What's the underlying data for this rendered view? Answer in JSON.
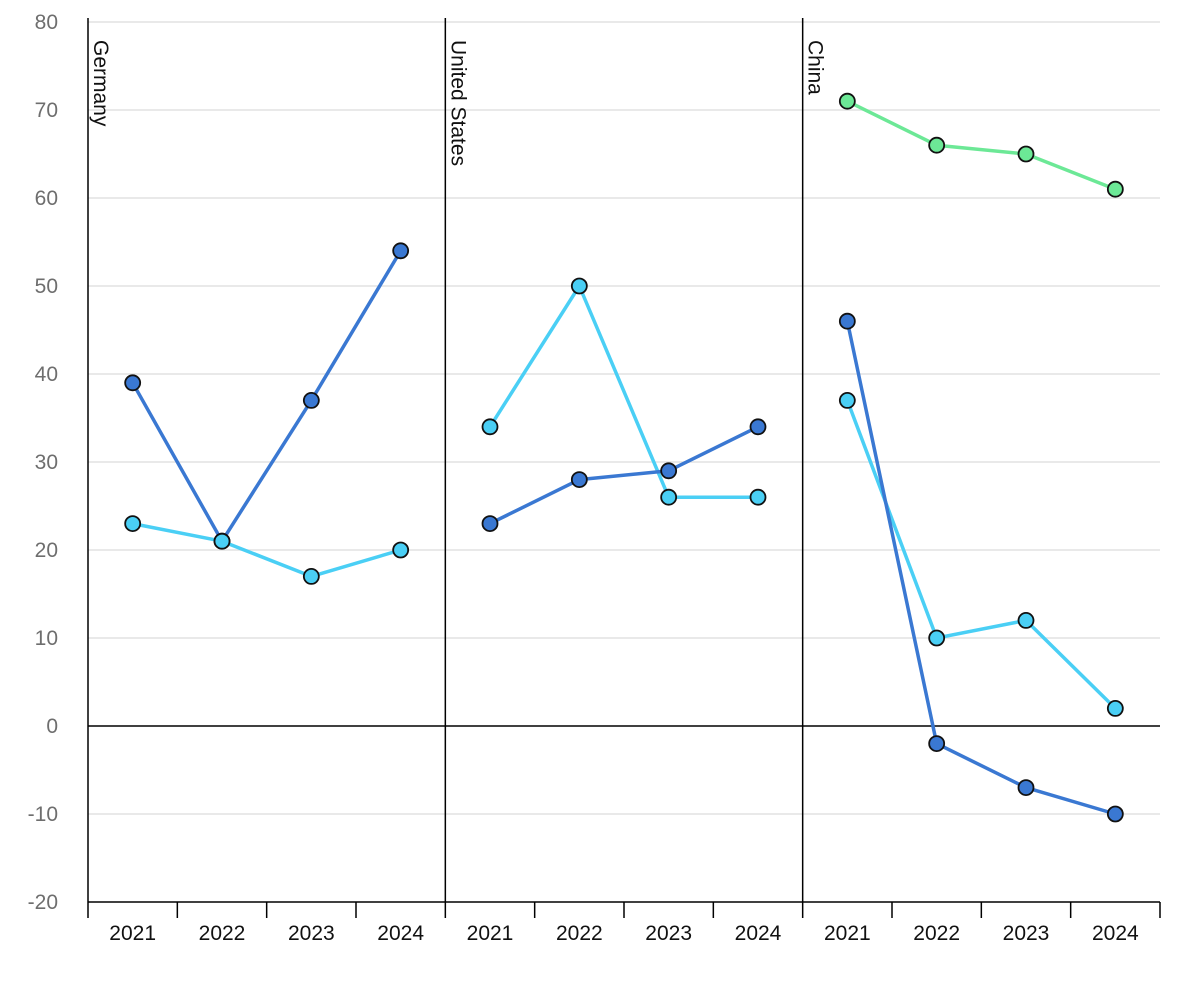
{
  "chart_data": {
    "type": "line",
    "ylim": [
      -20,
      80
    ],
    "y_ticks": [
      -20,
      -10,
      0,
      10,
      20,
      30,
      40,
      50,
      60,
      70,
      80
    ],
    "grid": true,
    "legend": "none",
    "series_colors": [
      "#3a78d2",
      "#4acff5",
      "#6ce896"
    ],
    "panels": [
      {
        "label": "Germany",
        "categories": [
          "2021",
          "2022",
          "2023",
          "2024"
        ],
        "series": [
          {
            "values": [
              39,
              21,
              37,
              54
            ],
            "color": "#3a78d2"
          },
          {
            "values": [
              23,
              21,
              17,
              20
            ],
            "color": "#4acff5"
          }
        ]
      },
      {
        "label": "United States",
        "categories": [
          "2021",
          "2022",
          "2023",
          "2024"
        ],
        "series": [
          {
            "values": [
              34,
              50,
              26,
              26
            ],
            "color": "#4acff5"
          },
          {
            "values": [
              23,
              28,
              29,
              34
            ],
            "color": "#3a78d2"
          }
        ]
      },
      {
        "label": "China",
        "categories": [
          "2021",
          "2022",
          "2023",
          "2024"
        ],
        "series": [
          {
            "values": [
              71,
              66,
              65,
              61
            ],
            "color": "#6ce896"
          },
          {
            "values": [
              37,
              10,
              12,
              2
            ],
            "color": "#4acff5"
          },
          {
            "values": [
              46,
              -2,
              -7,
              -10
            ],
            "color": "#3a78d2"
          }
        ]
      }
    ]
  }
}
